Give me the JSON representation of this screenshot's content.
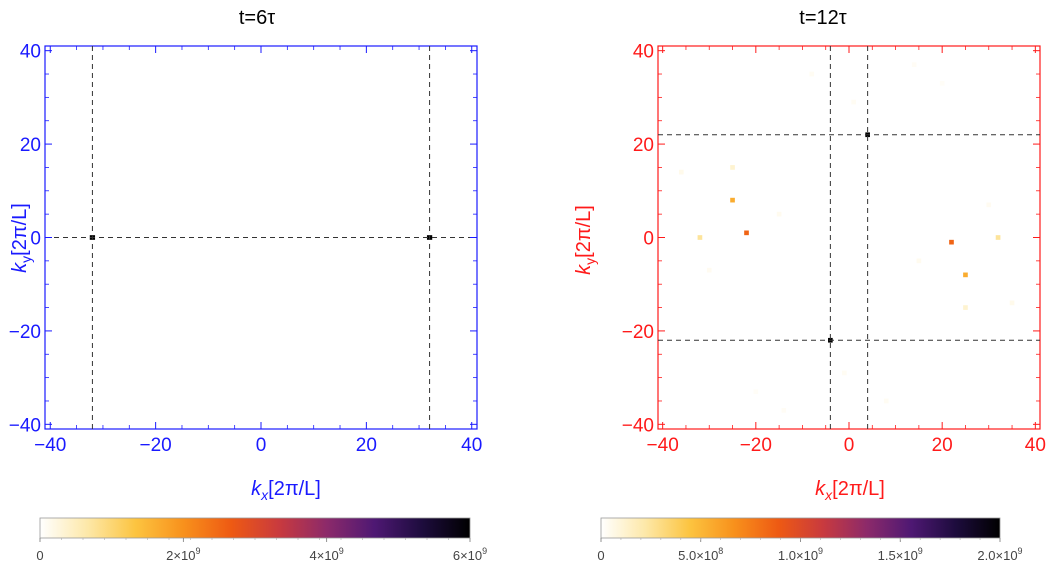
{
  "chart_data": [
    {
      "type": "heatmap",
      "title": "t=6τ",
      "xlabel": "k_x[2π/L]",
      "ylabel": "k_y[2π/L]",
      "xlim": [
        -41,
        41
      ],
      "ylim": [
        -41,
        41
      ],
      "x_ticks": [
        "-40",
        "-20",
        "0",
        "20",
        "40"
      ],
      "y_ticks": [
        "-40",
        "-20",
        "0",
        "20",
        "40"
      ],
      "frame_color": "#1a1aff",
      "dashed_vertical_lines": [
        -32,
        32
      ],
      "dashed_horizontal_lines": [
        0
      ],
      "points": [
        {
          "x": -32,
          "y": 0,
          "value": 6000000000
        },
        {
          "x": 32,
          "y": 0,
          "value": 6000000000
        }
      ],
      "colorbar": {
        "range": [
          0,
          6000000000
        ],
        "tick_values": [
          0,
          2000000000,
          4000000000,
          6000000000
        ],
        "tick_labels": [
          {
            "mantissa": "0",
            "exp": ""
          },
          {
            "mantissa": "2×10",
            "exp": "9"
          },
          {
            "mantissa": "4×10",
            "exp": "9"
          },
          {
            "mantissa": "6×10",
            "exp": "9"
          }
        ]
      }
    },
    {
      "type": "heatmap",
      "title": "t=12τ",
      "xlabel": "k_x[2π/L]",
      "ylabel": "k_y[2π/L]",
      "xlim": [
        -41,
        41
      ],
      "ylim": [
        -41,
        41
      ],
      "x_ticks": [
        "-40",
        "-20",
        "0",
        "20",
        "40"
      ],
      "y_ticks": [
        "-40",
        "-20",
        "0",
        "20",
        "40"
      ],
      "frame_color": "#ff1a1a",
      "dashed_vertical_lines": [
        -4,
        4
      ],
      "dashed_horizontal_lines": [
        22,
        -22
      ],
      "points": [
        {
          "x": 4,
          "y": 22,
          "value": 2000000000
        },
        {
          "x": -4,
          "y": -22,
          "value": 2000000000
        },
        {
          "x": -25,
          "y": 8,
          "value": 550000000
        },
        {
          "x": -22,
          "y": 1,
          "value": 850000000
        },
        {
          "x": -32,
          "y": 0,
          "value": 250000000
        },
        {
          "x": -25,
          "y": 15,
          "value": 120000000
        },
        {
          "x": 22,
          "y": -1,
          "value": 850000000
        },
        {
          "x": 25,
          "y": -8,
          "value": 550000000
        },
        {
          "x": 32,
          "y": 0,
          "value": 250000000
        },
        {
          "x": 25,
          "y": -15,
          "value": 120000000
        },
        {
          "x": -36,
          "y": 14,
          "value": 50000000
        },
        {
          "x": -15,
          "y": 5,
          "value": 40000000
        },
        {
          "x": 35,
          "y": -14,
          "value": 50000000
        },
        {
          "x": 15,
          "y": -5,
          "value": 40000000
        },
        {
          "x": -8,
          "y": 35,
          "value": 30000000
        },
        {
          "x": 8,
          "y": -35,
          "value": 30000000
        },
        {
          "x": 14,
          "y": 37,
          "value": 25000000
        },
        {
          "x": -14,
          "y": -37,
          "value": 25000000
        },
        {
          "x": 1,
          "y": 29,
          "value": 30000000
        },
        {
          "x": -1,
          "y": -29,
          "value": 30000000
        },
        {
          "x": 30,
          "y": 7,
          "value": 35000000
        },
        {
          "x": -30,
          "y": -7,
          "value": 35000000
        },
        {
          "x": 20,
          "y": 33,
          "value": 20000000
        },
        {
          "x": -20,
          "y": -33,
          "value": 20000000
        }
      ],
      "colorbar": {
        "range": [
          0,
          2000000000
        ],
        "tick_values": [
          0,
          500000000,
          1000000000,
          1500000000,
          2000000000
        ],
        "tick_labels": [
          {
            "mantissa": "0",
            "exp": ""
          },
          {
            "mantissa": "5.0×10",
            "exp": "8"
          },
          {
            "mantissa": "1.0×10",
            "exp": "9"
          },
          {
            "mantissa": "1.5×10",
            "exp": "9"
          },
          {
            "mantissa": "2.0×10",
            "exp": "9"
          }
        ]
      }
    }
  ],
  "colormap": [
    "#ffffff",
    "#fde8a8",
    "#fcc440",
    "#f8911c",
    "#ee5a13",
    "#c93a3e",
    "#8c2a6a",
    "#4e1873",
    "#1d0c3d",
    "#000000"
  ]
}
